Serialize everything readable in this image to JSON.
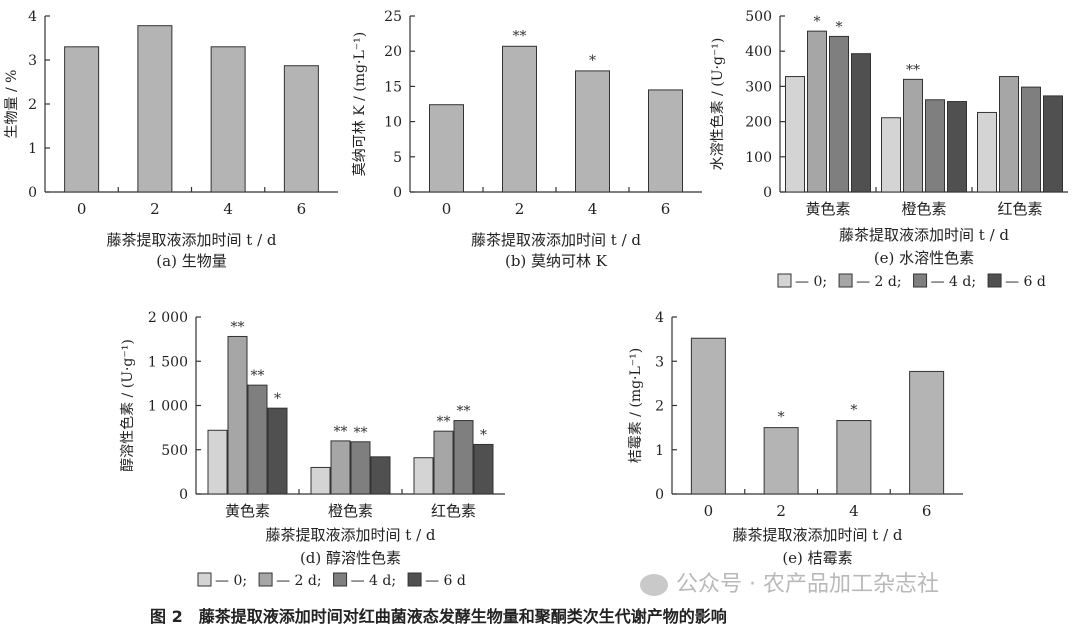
{
  "figure_title": "图 2　藤茶提取液添加时间对红曲菌液态发酵生物量和聚酮类次生代谢产物的影响",
  "watermark": "公众号 · 农产品加工杂志社",
  "colors": {
    "c0": "#d4d4d4",
    "c2": "#a6a6a6",
    "c4": "#7f7f7f",
    "c6": "#505050",
    "single": "#b4b4b4"
  },
  "chart_data": [
    {
      "id": "a",
      "type": "bar",
      "caption": "(a)  生物量",
      "xlabel": "藤茶提取液添加时间 t / d",
      "ylabel": "生物量 / %",
      "categories": [
        "0",
        "2",
        "4",
        "6"
      ],
      "values": [
        3.3,
        3.78,
        3.3,
        2.87
      ],
      "ylim": [
        0,
        4
      ],
      "yticks": [
        "0",
        "1",
        "2",
        "3",
        "4"
      ],
      "sig": [
        "",
        "",
        "",
        ""
      ]
    },
    {
      "id": "b",
      "type": "bar",
      "caption": "(b)  莫纳可林 K",
      "xlabel": "藤茶提取液添加时间 t / d",
      "ylabel": "莫纳可林 K / (mg·L⁻¹)",
      "categories": [
        "0",
        "2",
        "4",
        "6"
      ],
      "values": [
        12.4,
        20.7,
        17.2,
        14.5
      ],
      "ylim": [
        0,
        25
      ],
      "yticks": [
        "0",
        "5",
        "10",
        "15",
        "20",
        "25"
      ],
      "sig": [
        "",
        "**",
        "*",
        ""
      ]
    },
    {
      "id": "c",
      "type": "bar",
      "caption": "(e)  水溶性色素",
      "xlabel": "藤茶提取液添加时间 t / d",
      "ylabel": "水溶性色素 / (U·g⁻¹)",
      "categories": [
        "黄色素",
        "橙色素",
        "红色素"
      ],
      "series": [
        {
          "name": "— 0;",
          "values": [
            328,
            211,
            226
          ],
          "sig": [
            "",
            "",
            ""
          ]
        },
        {
          "name": "— 2 d;",
          "values": [
            457,
            320,
            328
          ],
          "sig": [
            "*",
            "**",
            ""
          ]
        },
        {
          "name": "— 4 d;",
          "values": [
            442,
            262,
            298
          ],
          "sig": [
            "*",
            "",
            ""
          ]
        },
        {
          "name": "— 6 d",
          "values": [
            393,
            257,
            273
          ],
          "sig": [
            "",
            "",
            ""
          ]
        }
      ],
      "ylim": [
        0,
        500
      ],
      "yticks": [
        "0",
        "100",
        "200",
        "300",
        "400",
        "500"
      ]
    },
    {
      "id": "d",
      "type": "bar",
      "caption": "(d)  醇溶性色素",
      "xlabel": "藤茶提取液添加时间 t / d",
      "ylabel": "醇溶性色素 / (U·g⁻¹)",
      "categories": [
        "黄色素",
        "橙色素",
        "红色素"
      ],
      "series": [
        {
          "name": "— 0;",
          "values": [
            720,
            300,
            410
          ],
          "sig": [
            "",
            "",
            ""
          ]
        },
        {
          "name": "— 2 d;",
          "values": [
            1780,
            600,
            710
          ],
          "sig": [
            "**",
            "**",
            "**"
          ]
        },
        {
          "name": "— 4 d;",
          "values": [
            1230,
            590,
            830
          ],
          "sig": [
            "**",
            "**",
            "**"
          ]
        },
        {
          "name": "— 6 d",
          "values": [
            970,
            420,
            560
          ],
          "sig": [
            "*",
            "",
            "*"
          ]
        }
      ],
      "ylim": [
        0,
        2000
      ],
      "yticks": [
        "0",
        "500",
        "1 000",
        "1 500",
        "2 000"
      ]
    },
    {
      "id": "e",
      "type": "bar",
      "caption": "(e)  桔霉素",
      "xlabel": "藤茶提取液添加时间 t / d",
      "ylabel": "桔霉素 / (mg·L⁻¹)",
      "categories": [
        "0",
        "2",
        "4",
        "6"
      ],
      "values": [
        3.52,
        1.5,
        1.66,
        2.77
      ],
      "ylim": [
        0,
        4
      ],
      "yticks": [
        "0",
        "1",
        "2",
        "3",
        "4"
      ],
      "sig": [
        "",
        "*",
        "*",
        ""
      ]
    }
  ]
}
